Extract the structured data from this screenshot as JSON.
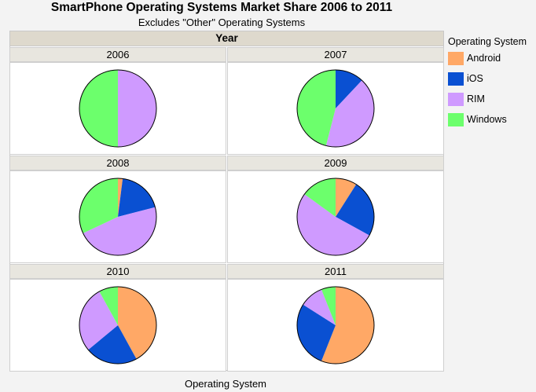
{
  "chart_data": {
    "type": "pie",
    "title": "SmartPhone Operating Systems Market Share 2006 to 2011",
    "subtitle": "Excludes \"Other\" Operating Systems",
    "facet_header": "Year",
    "xlabel": "Operating System",
    "legend_title": "Operating System",
    "legend_placement": "right",
    "categories": [
      "Android",
      "iOS",
      "RIM",
      "Windows"
    ],
    "colors": [
      "#ffa866",
      "#0a50d2",
      "#cf9aff",
      "#6cff6c"
    ],
    "panels": [
      {
        "year": "2006",
        "values": [
          0,
          0,
          50,
          50
        ]
      },
      {
        "year": "2007",
        "values": [
          0,
          12,
          42,
          46
        ]
      },
      {
        "year": "2008",
        "values": [
          2,
          19,
          47,
          32
        ]
      },
      {
        "year": "2009",
        "values": [
          9,
          24,
          52,
          15
        ]
      },
      {
        "year": "2010",
        "values": [
          42,
          22,
          28,
          8
        ]
      },
      {
        "year": "2011",
        "values": [
          56,
          28,
          10,
          6
        ]
      }
    ]
  }
}
